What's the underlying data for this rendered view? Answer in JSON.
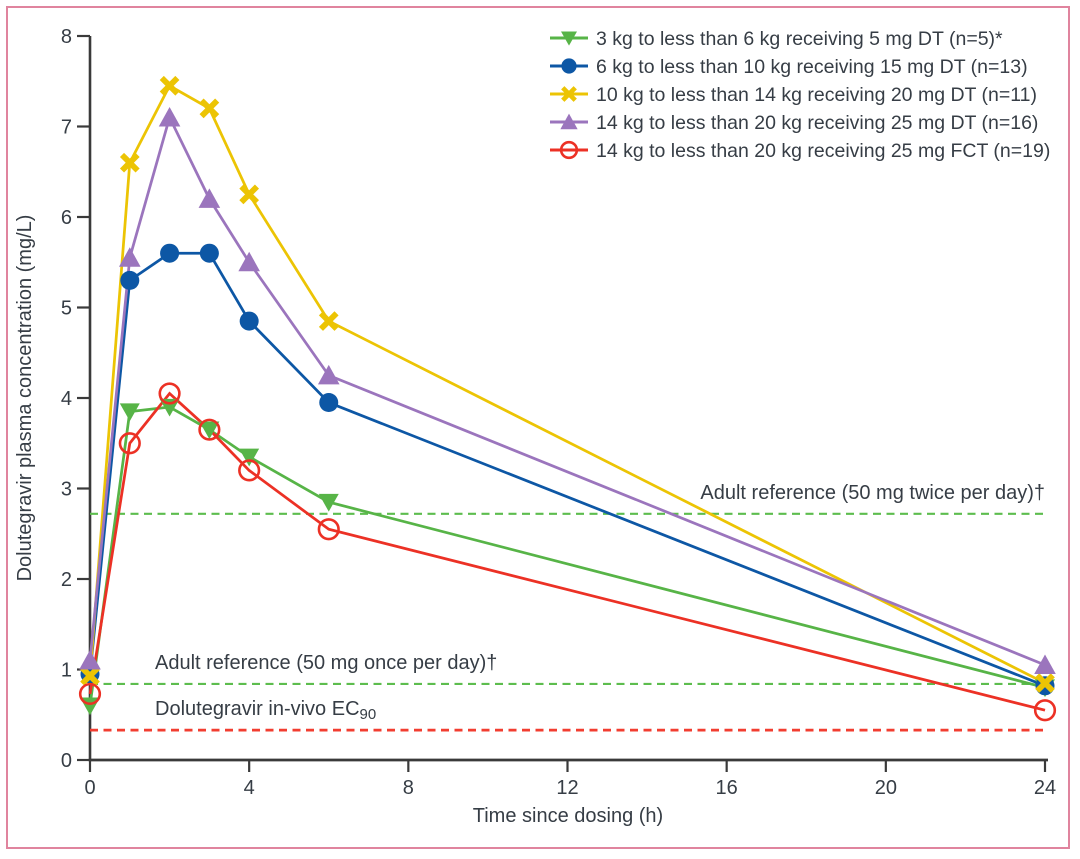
{
  "figure": {
    "border_color": "#e0849e",
    "background": "#ffffff",
    "text_color": "#363d45",
    "axis_color": "#3a3a3a"
  },
  "chart_data": {
    "type": "line",
    "title": "",
    "xlabel": "Time since dosing (h)",
    "ylabel": "Dolutegravir plasma concentration (mg/L)",
    "xlim": [
      0,
      24
    ],
    "ylim": [
      0,
      8
    ],
    "xticks": [
      0,
      4,
      8,
      12,
      16,
      20,
      24
    ],
    "yticks": [
      0,
      1,
      2,
      3,
      4,
      5,
      6,
      7,
      8
    ],
    "grid": false,
    "legend_position": "top-right",
    "x": [
      0,
      1,
      2,
      3,
      4,
      6,
      24
    ],
    "series": [
      {
        "name": "3 kg to less than 6 kg receiving 5 mg DT (n=5)*",
        "marker": "triangle-down",
        "color": "#57b447",
        "values": [
          0.6,
          3.85,
          3.9,
          3.65,
          3.35,
          2.85,
          0.8
        ]
      },
      {
        "name": "6 kg to less than 10 kg receiving 15 mg DT (n=13)",
        "marker": "circle-filled",
        "color": "#0d57a5",
        "values": [
          0.95,
          5.3,
          5.6,
          5.6,
          4.85,
          3.95,
          0.82
        ]
      },
      {
        "name": "10 kg to less than 14 kg receiving 20 mg DT (n=11)",
        "marker": "x-bold",
        "color": "#ecc404",
        "values": [
          0.93,
          6.6,
          7.45,
          7.2,
          6.25,
          4.85,
          0.85
        ]
      },
      {
        "name": "14 kg to less than 20 kg receiving 25 mg DT (n=16)",
        "marker": "triangle-up",
        "color": "#9b75bd",
        "values": [
          1.1,
          5.55,
          7.1,
          6.2,
          5.5,
          4.25,
          1.05
        ]
      },
      {
        "name": "14 kg to less than 20 kg receiving 25 mg FCT (n=19)",
        "marker": "circle-open",
        "color": "#ec3125",
        "values": [
          0.73,
          3.5,
          4.05,
          3.65,
          3.2,
          2.55,
          0.55
        ]
      }
    ],
    "reference_lines": [
      {
        "label": "Adult reference (50 mg twice per day)†",
        "label_sub": "",
        "value": 2.72,
        "color": "#5dbd4e",
        "style": "dashed",
        "label_align": "right"
      },
      {
        "label": "Adult reference (50 mg once per day)†",
        "label_sub": "",
        "value": 0.84,
        "color": "#5dbd4e",
        "style": "dashed",
        "label_align": "left"
      },
      {
        "label": "Dolutegravir in-vivo EC",
        "label_sub": "90",
        "value": 0.33,
        "color": "#f23d30",
        "style": "dashed",
        "label_align": "left"
      }
    ]
  }
}
